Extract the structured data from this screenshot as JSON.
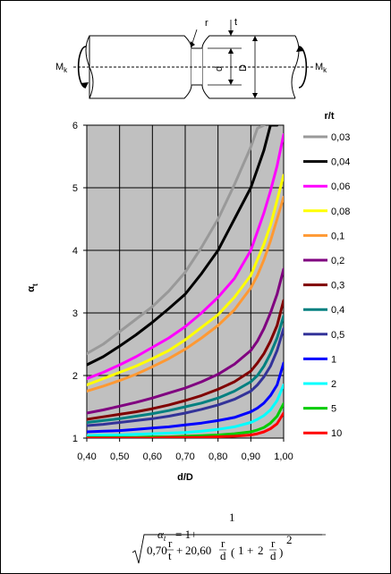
{
  "diagram": {
    "moment_left": "M",
    "moment_left_sub": "k",
    "moment_right": "M",
    "moment_right_sub": "k",
    "label_r": "r",
    "label_t": "t",
    "label_d": "d",
    "label_D": "D"
  },
  "formula": {
    "lhs_symbol": "α",
    "lhs_sub": "t",
    "equals_one_plus": "= 1+",
    "numerator": "1",
    "term1": "0,70",
    "term2": "20,60",
    "term3": "2",
    "frac_r": "r",
    "frac_t": "t",
    "frac_d": "d",
    "plus": "+",
    "one": "1",
    "exponent": "2"
  },
  "chart_data": {
    "type": "line",
    "title": "",
    "xlabel": "d/D",
    "ylabel": "α",
    "ylabel_sub": "t",
    "xlim": [
      0.4,
      1.0
    ],
    "ylim": [
      1,
      6
    ],
    "xticks": [
      "0,40",
      "0,50",
      "0,60",
      "0,70",
      "0,80",
      "0,90",
      "1,00"
    ],
    "yticks": [
      "1",
      "2",
      "3",
      "4",
      "5",
      "6"
    ],
    "grid": true,
    "legend_title": "r/t",
    "legend_position": "right",
    "x": [
      0.4,
      0.45,
      0.5,
      0.55,
      0.6,
      0.65,
      0.7,
      0.75,
      0.8,
      0.85,
      0.9,
      0.92,
      0.94,
      0.96,
      0.98,
      1.0
    ],
    "series": [
      {
        "name": "0,03",
        "color": "#999999",
        "values": [
          2.35,
          2.5,
          2.7,
          2.9,
          3.1,
          3.35,
          3.65,
          4.05,
          4.5,
          5.05,
          5.65,
          5.95,
          6.0,
          null,
          null,
          null
        ]
      },
      {
        "name": "0,04",
        "color": "#000000",
        "values": [
          2.17,
          2.3,
          2.47,
          2.65,
          2.85,
          3.07,
          3.3,
          3.63,
          4.0,
          4.5,
          5.0,
          5.3,
          5.6,
          6.0,
          6.0,
          null
        ]
      },
      {
        "name": "0,06",
        "color": "#ff00ff",
        "values": [
          1.95,
          2.05,
          2.17,
          2.3,
          2.45,
          2.6,
          2.78,
          3.0,
          3.25,
          3.55,
          4.0,
          4.3,
          4.6,
          4.95,
          5.35,
          5.85
        ]
      },
      {
        "name": "0,08",
        "color": "#ffff00",
        "values": [
          1.85,
          1.95,
          2.05,
          2.15,
          2.27,
          2.4,
          2.57,
          2.77,
          2.97,
          3.25,
          3.6,
          3.85,
          4.1,
          4.4,
          4.8,
          5.2
        ]
      },
      {
        "name": "0,1",
        "color": "#ff9933",
        "values": [
          1.75,
          1.83,
          1.92,
          2.02,
          2.14,
          2.27,
          2.42,
          2.6,
          2.8,
          3.05,
          3.4,
          3.6,
          3.85,
          4.15,
          4.5,
          4.85
        ]
      },
      {
        "name": "0,2",
        "color": "#800080",
        "values": [
          1.4,
          1.45,
          1.51,
          1.57,
          1.64,
          1.72,
          1.8,
          1.9,
          2.02,
          2.18,
          2.4,
          2.55,
          2.75,
          3.0,
          3.3,
          3.7
        ]
      },
      {
        "name": "0,3",
        "color": "#800000",
        "values": [
          1.3,
          1.34,
          1.38,
          1.42,
          1.47,
          1.53,
          1.6,
          1.68,
          1.78,
          1.9,
          2.07,
          2.2,
          2.35,
          2.55,
          2.8,
          3.2
        ]
      },
      {
        "name": "0,4",
        "color": "#008080",
        "values": [
          1.25,
          1.28,
          1.31,
          1.35,
          1.39,
          1.44,
          1.5,
          1.56,
          1.64,
          1.75,
          1.9,
          2.0,
          2.15,
          2.35,
          2.6,
          2.95
        ]
      },
      {
        "name": "0,5",
        "color": "#333399",
        "values": [
          1.2,
          1.22,
          1.25,
          1.28,
          1.31,
          1.35,
          1.4,
          1.46,
          1.53,
          1.62,
          1.75,
          1.85,
          1.98,
          2.15,
          2.4,
          2.75
        ]
      },
      {
        "name": "1",
        "color": "#0000ff",
        "values": [
          1.1,
          1.11,
          1.12,
          1.14,
          1.16,
          1.18,
          1.21,
          1.24,
          1.28,
          1.33,
          1.42,
          1.48,
          1.56,
          1.68,
          1.85,
          2.2
        ]
      },
      {
        "name": "2",
        "color": "#00ffff",
        "values": [
          1.04,
          1.05,
          1.05,
          1.06,
          1.07,
          1.08,
          1.09,
          1.11,
          1.14,
          1.18,
          1.25,
          1.3,
          1.36,
          1.45,
          1.6,
          1.85
        ]
      },
      {
        "name": "5",
        "color": "#00cc00",
        "values": [
          1.01,
          1.01,
          1.01,
          1.01,
          1.02,
          1.02,
          1.03,
          1.04,
          1.05,
          1.07,
          1.1,
          1.13,
          1.17,
          1.24,
          1.35,
          1.55
        ]
      },
      {
        "name": "10",
        "color": "#ff0000",
        "values": [
          1.0,
          1.0,
          1.0,
          1.0,
          1.0,
          1.01,
          1.01,
          1.01,
          1.02,
          1.03,
          1.05,
          1.07,
          1.1,
          1.15,
          1.23,
          1.4
        ]
      }
    ]
  }
}
